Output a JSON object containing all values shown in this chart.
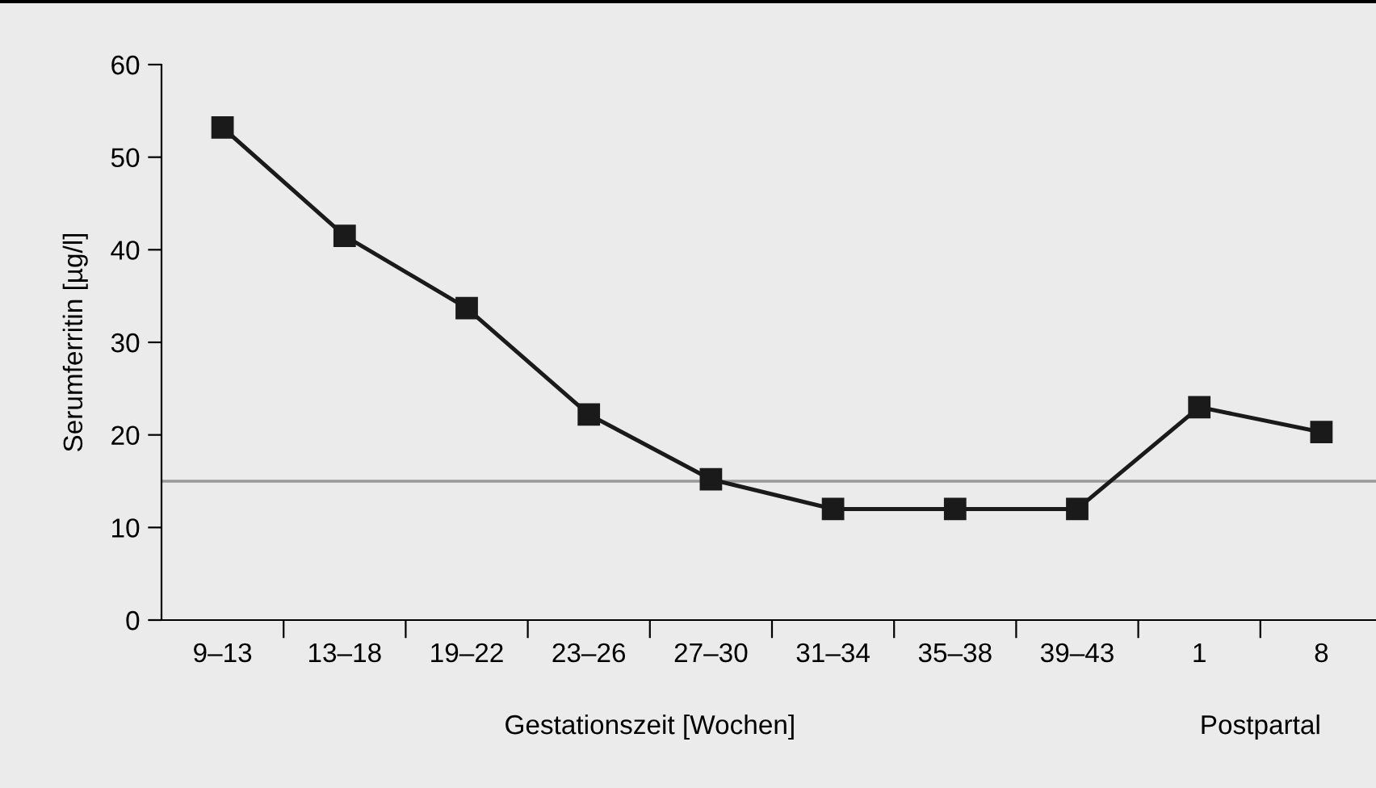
{
  "chart_data": {
    "type": "line",
    "ylabel": "Serumferritin [µg/l]",
    "xlabel": "Gestationszeit [Wochen]",
    "annotations": [
      "Postpartal"
    ],
    "categories": [
      "9–13",
      "13–18",
      "19–22",
      "23–26",
      "27–30",
      "31–34",
      "35–38",
      "39–43",
      "1",
      "8"
    ],
    "series": [
      {
        "color": "#1a1a1a",
        "values": [
          53.2,
          41.5,
          33.7,
          22.2,
          15.2,
          12,
          12,
          12,
          23,
          20.3
        ]
      }
    ],
    "ylim": [
      0,
      60
    ],
    "yticks": [
      0,
      10,
      20,
      30,
      40,
      50,
      60
    ],
    "ref_lines": [
      {
        "axis": "y",
        "value": 15,
        "color": "#9a9a9a"
      }
    ],
    "marker": "square",
    "line_style": "solid",
    "grid": false,
    "legend": false
  }
}
